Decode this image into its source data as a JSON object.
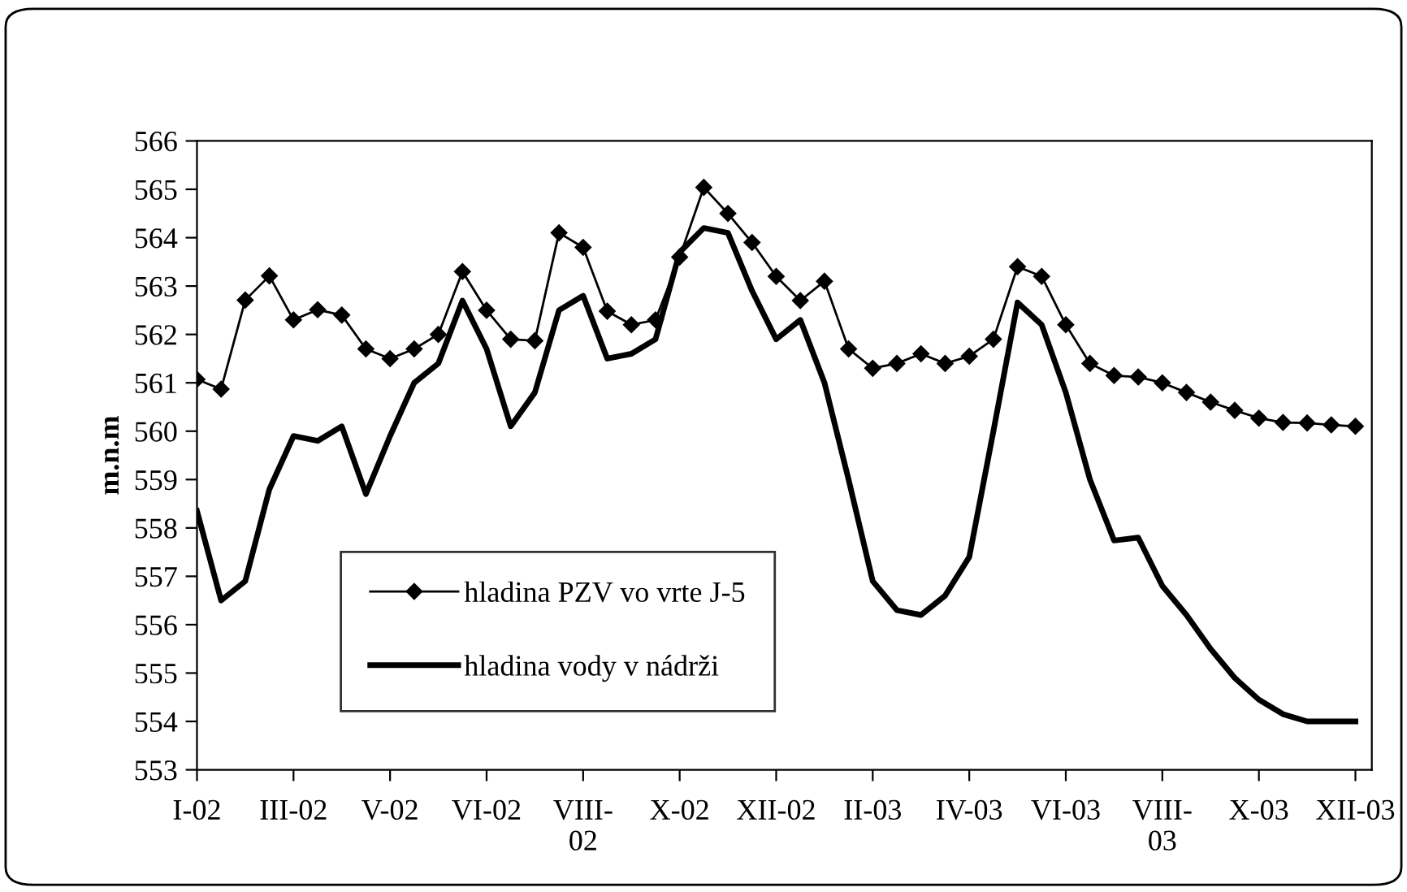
{
  "chart_data": {
    "type": "line",
    "ylabel": "m.n.m",
    "ylim": [
      553,
      566
    ],
    "yticks": [
      553,
      554,
      555,
      556,
      557,
      558,
      559,
      560,
      561,
      562,
      563,
      564,
      565,
      566
    ],
    "categories": [
      "I-02",
      null,
      null,
      null,
      "III-02",
      null,
      null,
      null,
      "V-02",
      null,
      null,
      null,
      "VI-02",
      null,
      null,
      null,
      "VIII-\n02",
      null,
      null,
      null,
      "X-02",
      null,
      null,
      null,
      "XII-02",
      null,
      null,
      null,
      "II-03",
      null,
      null,
      null,
      "IV-03",
      null,
      null,
      null,
      "VI-03",
      null,
      null,
      null,
      "VIII-\n03",
      null,
      null,
      null,
      "X-03",
      null,
      null,
      null,
      "XII-03"
    ],
    "grid": false,
    "legend": "bottom left",
    "series": [
      {
        "name": "hladina PZV vo vrte J-5",
        "color": "#000000",
        "marker": "diamond",
        "values": [
          561.07,
          560.87,
          562.71,
          563.21,
          562.3,
          562.51,
          562.4,
          561.7,
          561.5,
          561.7,
          562.0,
          563.3,
          562.5,
          561.9,
          561.87,
          564.1,
          563.8,
          562.48,
          562.2,
          562.3,
          563.6,
          565.04,
          564.5,
          563.9,
          563.2,
          562.7,
          563.1,
          561.7,
          561.3,
          561.4,
          561.6,
          561.4,
          561.55,
          561.9,
          563.4,
          563.2,
          562.2,
          561.4,
          561.15,
          561.12,
          561.0,
          560.8,
          560.6,
          560.43,
          560.27,
          560.18,
          560.17,
          560.13,
          560.1
        ]
      },
      {
        "name": "hladina vody v nádrži",
        "color": "#000000",
        "marker": "none",
        "values": [
          558.35,
          556.5,
          556.9,
          558.8,
          559.9,
          559.8,
          560.1,
          558.7,
          559.9,
          561.0,
          561.4,
          562.7,
          561.7,
          560.1,
          560.8,
          562.5,
          562.8,
          561.5,
          561.6,
          561.9,
          563.7,
          564.2,
          564.1,
          562.9,
          561.9,
          562.3,
          561.0,
          559.0,
          556.9,
          556.3,
          556.2,
          556.6,
          557.4,
          560.0,
          562.66,
          562.2,
          560.8,
          559.0,
          557.74,
          557.8,
          556.8,
          556.2,
          555.5,
          554.9,
          554.45,
          554.15,
          554.0,
          554.0,
          554.0
        ]
      }
    ]
  }
}
